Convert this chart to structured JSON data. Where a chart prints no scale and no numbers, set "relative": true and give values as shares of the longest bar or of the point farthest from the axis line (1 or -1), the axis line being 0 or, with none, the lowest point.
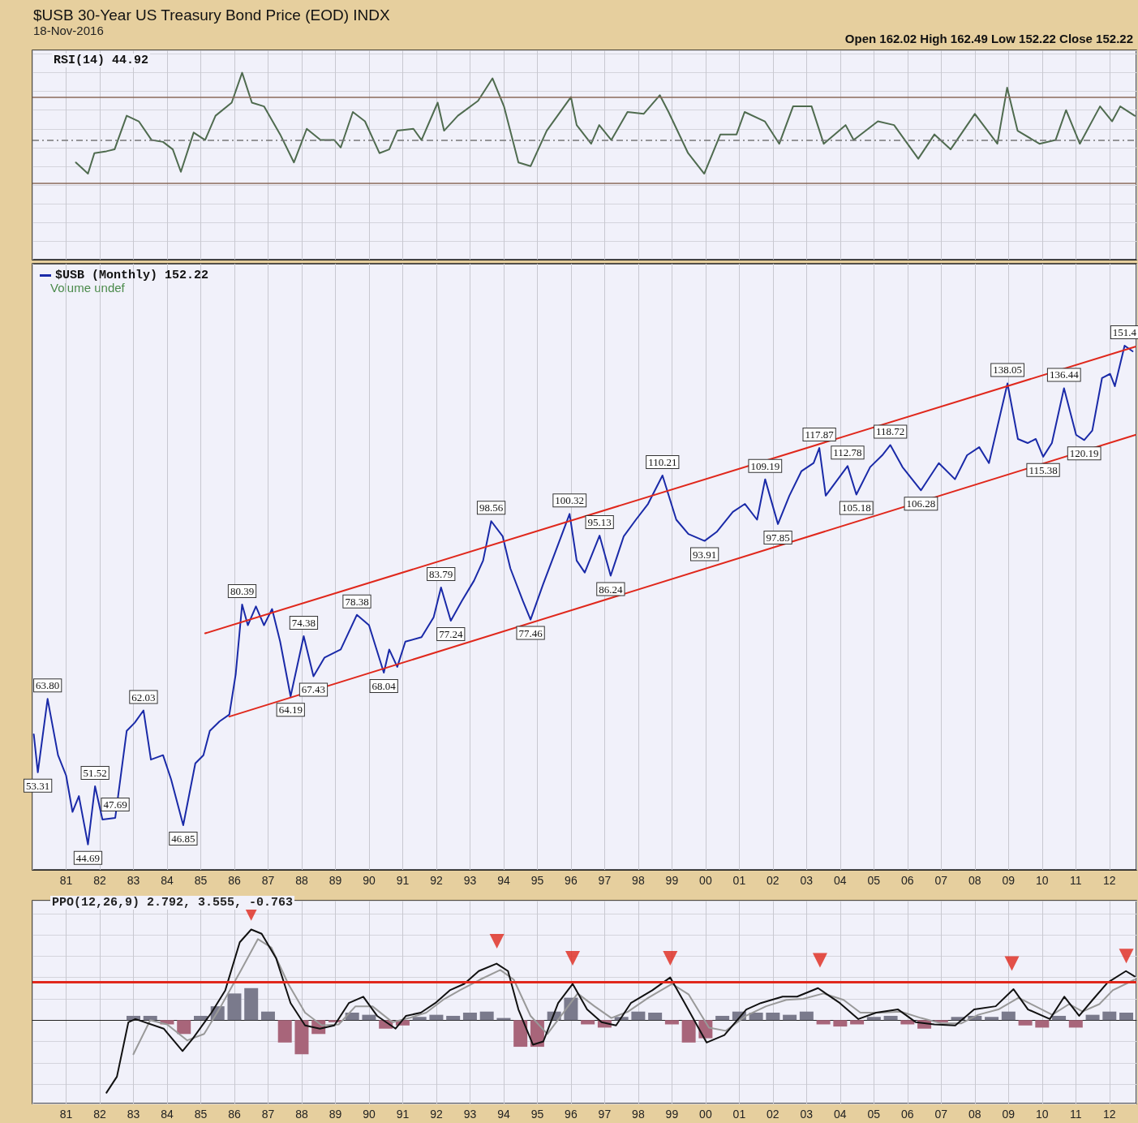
{
  "chart_data": [
    {
      "type": "line",
      "title": "$USB 30-Year US Treasury Bond Price (EOD) INDX",
      "subtitle": "18-Nov-2016",
      "annotations": [
        "Open 162.02 High 162.49 Low 152.22 Close 152.22",
        "RSI(14) 44.92"
      ],
      "relative": true,
      "xlim": [
        1980,
        2012.8
      ],
      "tick_labels": false,
      "grid": true,
      "marker": "none",
      "ref_lines": [
        {
          "axis": "y",
          "value": 0.87,
          "color": "#8a6a5a"
        },
        {
          "axis": "y",
          "value": 0.41,
          "color": "#8a6a5a"
        },
        {
          "axis": "y",
          "value": 0.64,
          "color": "#777777",
          "line_style": "dashed"
        }
      ],
      "series": [
        {
          "color": "#4f6b4f",
          "x": [
            1981.29,
            1981.65,
            1981.84,
            1982.2,
            1982.44,
            1982.8,
            1983.16,
            1983.54,
            1983.88,
            1984.17,
            1984.41,
            1984.79,
            1985.13,
            1985.44,
            1985.92,
            1986.23,
            1986.52,
            1986.88,
            1987.36,
            1987.77,
            1988.15,
            1988.56,
            1988.97,
            1989.16,
            1989.52,
            1989.88,
            1990.31,
            1990.6,
            1990.84,
            1991.32,
            1991.56,
            1992.04,
            1992.23,
            1992.64,
            1993.24,
            1993.67,
            1994.01,
            1994.44,
            1994.8,
            1995.28,
            1996.0,
            1996.17,
            1996.6,
            1996.84,
            1997.2,
            1997.68,
            1998.16,
            1998.64,
            1998.9,
            1999.48,
            1999.96,
            2000.44,
            2000.92,
            2001.16,
            2001.76,
            2002.19,
            2002.6,
            2003.15,
            2003.51,
            2004.16,
            2004.4,
            2005.12,
            2005.6,
            2006.32,
            2006.8,
            2007.28,
            2008.0,
            2008.67,
            2008.96,
            2009.27,
            2009.92,
            2010.4,
            2010.71,
            2011.12,
            2011.72,
            2012.08,
            2012.32,
            2012.75
          ],
          "values": [
            0.52,
            0.46,
            0.57,
            0.58,
            0.59,
            0.77,
            0.74,
            0.64,
            0.63,
            0.59,
            0.47,
            0.68,
            0.64,
            0.77,
            0.84,
            1.0,
            0.84,
            0.82,
            0.67,
            0.52,
            0.7,
            0.64,
            0.64,
            0.6,
            0.79,
            0.74,
            0.57,
            0.59,
            0.69,
            0.7,
            0.64,
            0.84,
            0.69,
            0.77,
            0.85,
            0.97,
            0.82,
            0.52,
            0.5,
            0.69,
            0.87,
            0.72,
            0.62,
            0.72,
            0.64,
            0.79,
            0.78,
            0.88,
            0.79,
            0.57,
            0.46,
            0.67,
            0.67,
            0.79,
            0.74,
            0.62,
            0.82,
            0.82,
            0.62,
            0.72,
            0.64,
            0.74,
            0.72,
            0.54,
            0.67,
            0.59,
            0.78,
            0.62,
            0.92,
            0.69,
            0.62,
            0.64,
            0.8,
            0.62,
            0.82,
            0.74,
            0.82,
            0.77
          ]
        }
      ]
    },
    {
      "type": "line",
      "annotations": [
        "Volume undef"
      ],
      "log": true,
      "ylim": [
        42,
        185
      ],
      "xlim": [
        1980,
        2012.8
      ],
      "xticks": [
        {
          "value": 1981,
          "label": "81"
        },
        {
          "value": 1982,
          "label": "82"
        },
        {
          "value": 1983,
          "label": "83"
        },
        {
          "value": 1984,
          "label": "84"
        },
        {
          "value": 1985,
          "label": "85"
        },
        {
          "value": 1986,
          "label": "86"
        },
        {
          "value": 1987,
          "label": "87"
        },
        {
          "value": 1988,
          "label": "88"
        },
        {
          "value": 1989,
          "label": "89"
        },
        {
          "value": 1990,
          "label": "90"
        },
        {
          "value": 1991,
          "label": "91"
        },
        {
          "value": 1992,
          "label": "92"
        },
        {
          "value": 1993,
          "label": "93"
        },
        {
          "value": 1994,
          "label": "94"
        },
        {
          "value": 1995,
          "label": "95"
        },
        {
          "value": 1996,
          "label": "96"
        },
        {
          "value": 1997,
          "label": "97"
        },
        {
          "value": 1998,
          "label": "98"
        },
        {
          "value": 1999,
          "label": "99"
        },
        {
          "value": 2000,
          "label": "00"
        },
        {
          "value": 2001,
          "label": "01"
        },
        {
          "value": 2002,
          "label": "02"
        },
        {
          "value": 2003,
          "label": "03"
        },
        {
          "value": 2004,
          "label": "04"
        },
        {
          "value": 2005,
          "label": "05"
        },
        {
          "value": 2006,
          "label": "06"
        },
        {
          "value": 2007,
          "label": "07"
        },
        {
          "value": 2008,
          "label": "08"
        },
        {
          "value": 2009,
          "label": "09"
        },
        {
          "value": 2010,
          "label": "10"
        },
        {
          "value": 2011,
          "label": "11"
        },
        {
          "value": 2012,
          "label": "12"
        }
      ],
      "tick_labels": "x",
      "grid": "x",
      "legend": "top left",
      "marker": "none",
      "series": [
        {
          "name": "$USB (Monthly) 152.22",
          "color": "#1a2aa8",
          "x": [
            1980.04,
            1980.16,
            1980.45,
            1980.76,
            1981.0,
            1981.19,
            1981.38,
            1981.65,
            1981.86,
            1982.08,
            1982.46,
            1982.8,
            1983.04,
            1983.3,
            1983.52,
            1983.88,
            1984.12,
            1984.48,
            1984.84,
            1985.08,
            1985.27,
            1985.56,
            1985.85,
            1986.04,
            1986.23,
            1986.4,
            1986.64,
            1986.88,
            1987.12,
            1987.36,
            1987.67,
            1988.06,
            1988.35,
            1988.68,
            1989.16,
            1989.64,
            1990.0,
            1990.44,
            1990.6,
            1990.84,
            1991.08,
            1991.56,
            1991.92,
            1992.14,
            1992.43,
            1992.76,
            1993.12,
            1993.39,
            1993.63,
            1993.97,
            1994.2,
            1994.57,
            1994.8,
            1995.17,
            1995.53,
            1995.96,
            1996.17,
            1996.41,
            1996.85,
            1997.18,
            1997.57,
            1997.93,
            1998.29,
            1998.72,
            1999.13,
            1999.49,
            1999.97,
            2000.33,
            2000.81,
            2001.17,
            2001.53,
            2001.77,
            2002.15,
            2002.49,
            2002.85,
            2003.21,
            2003.38,
            2003.57,
            2003.93,
            2004.22,
            2004.48,
            2004.89,
            2005.25,
            2005.49,
            2005.85,
            2006.4,
            2006.93,
            2007.41,
            2007.77,
            2008.13,
            2008.42,
            2008.97,
            2009.28,
            2009.57,
            2009.81,
            2010.03,
            2010.29,
            2010.65,
            2011.01,
            2011.25,
            2011.49,
            2011.78,
            2012.02,
            2012.16,
            2012.45,
            2012.69
          ],
          "values": [
            58.5,
            53.31,
            63.8,
            55.6,
            52.9,
            48.4,
            50.3,
            44.69,
            51.52,
            47.5,
            47.69,
            59.0,
            60.2,
            62.03,
            55.0,
            55.6,
            52.4,
            46.85,
            54.5,
            55.6,
            59.0,
            60.4,
            61.4,
            67.8,
            80.39,
            76.4,
            80.0,
            76.4,
            79.5,
            73.4,
            64.19,
            74.38,
            67.43,
            70.6,
            72.0,
            78.38,
            76.4,
            68.04,
            72.0,
            69.0,
            73.4,
            74.2,
            77.9,
            83.79,
            77.24,
            81.1,
            85.2,
            89.5,
            98.56,
            95.0,
            87.8,
            81.1,
            77.46,
            84.4,
            91.3,
            100.32,
            89.5,
            86.9,
            95.13,
            86.24,
            95.0,
            98.9,
            102.8,
            110.21,
            98.9,
            95.5,
            93.91,
            96.0,
            100.8,
            102.8,
            98.9,
            109.19,
            97.85,
            104.9,
            111.4,
            113.6,
            117.87,
            104.9,
            109.2,
            112.78,
            105.18,
            112.5,
            115.8,
            118.72,
            112.5,
            106.28,
            113.6,
            109.2,
            115.8,
            118.1,
            113.6,
            138.05,
            120.5,
            119.3,
            120.5,
            115.38,
            119.3,
            136.44,
            121.7,
            120.19,
            123.0,
            139.9,
            141.3,
            137.1,
            151.4,
            149.3
          ],
          "value_labels": [
            null,
            "53.31",
            "63.80",
            null,
            null,
            null,
            null,
            "44.69",
            "51.52",
            null,
            "47.69",
            null,
            null,
            "62.03",
            null,
            null,
            null,
            "46.85",
            null,
            null,
            null,
            null,
            null,
            null,
            "80.39",
            null,
            null,
            null,
            null,
            null,
            "64.19",
            "74.38",
            "67.43",
            null,
            null,
            "78.38",
            null,
            "68.04",
            null,
            null,
            null,
            null,
            null,
            "83.79",
            "77.24",
            null,
            null,
            null,
            "98.56",
            null,
            null,
            null,
            "77.46",
            null,
            null,
            "100.32",
            null,
            null,
            "95.13",
            "86.24",
            null,
            null,
            null,
            "110.21",
            null,
            null,
            "93.91",
            null,
            null,
            null,
            null,
            "109.19",
            "97.85",
            null,
            null,
            null,
            "117.87",
            null,
            null,
            "112.78",
            "105.18",
            null,
            null,
            "118.72",
            null,
            "106.28",
            null,
            null,
            null,
            null,
            null,
            "138.05",
            null,
            null,
            null,
            "115.38",
            null,
            "136.44",
            null,
            "120.19",
            null,
            null,
            null,
            null,
            "151.4",
            null
          ]
        },
        {
          "color": "#e0281c",
          "x": [
            1985.13,
            2012.77
          ],
          "values": [
            74.9,
            151.0
          ]
        },
        {
          "color": "#e0281c",
          "x": [
            1985.85,
            2012.77
          ],
          "values": [
            61.1,
            121.7
          ]
        }
      ]
    },
    {
      "type": "line",
      "title": "PPO(12,26,9) 2.792, 3.555, -0.763",
      "relative": true,
      "xlim": [
        1980,
        2012.8
      ],
      "xticks": [
        {
          "value": 1981,
          "label": "81"
        },
        {
          "value": 1982,
          "label": "82"
        },
        {
          "value": 1983,
          "label": "83"
        },
        {
          "value": 1984,
          "label": "84"
        },
        {
          "value": 1985,
          "label": "85"
        },
        {
          "value": 1986,
          "label": "86"
        },
        {
          "value": 1987,
          "label": "87"
        },
        {
          "value": 1988,
          "label": "88"
        },
        {
          "value": 1989,
          "label": "89"
        },
        {
          "value": 1990,
          "label": "90"
        },
        {
          "value": 1991,
          "label": "91"
        },
        {
          "value": 1992,
          "label": "92"
        },
        {
          "value": 1993,
          "label": "93"
        },
        {
          "value": 1994,
          "label": "94"
        },
        {
          "value": 1995,
          "label": "95"
        },
        {
          "value": 1996,
          "label": "96"
        },
        {
          "value": 1997,
          "label": "97"
        },
        {
          "value": 1998,
          "label": "98"
        },
        {
          "value": 1999,
          "label": "99"
        },
        {
          "value": 2000,
          "label": "00"
        },
        {
          "value": 2001,
          "label": "01"
        },
        {
          "value": 2002,
          "label": "02"
        },
        {
          "value": 2003,
          "label": "03"
        },
        {
          "value": 2004,
          "label": "04"
        },
        {
          "value": 2005,
          "label": "05"
        },
        {
          "value": 2006,
          "label": "06"
        },
        {
          "value": 2007,
          "label": "07"
        },
        {
          "value": 2008,
          "label": "08"
        },
        {
          "value": 2009,
          "label": "09"
        },
        {
          "value": 2010,
          "label": "10"
        },
        {
          "value": 2011,
          "label": "11"
        },
        {
          "value": 2012,
          "label": "12"
        }
      ],
      "tick_labels": "x",
      "grid": true,
      "marker": "none",
      "ref_lines": [
        {
          "axis": "y",
          "value": 0.36,
          "color": "#e0281c"
        }
      ],
      "series": [
        {
          "type": "bar",
          "color": "#7a7a8c",
          "x": [
            1983.0,
            1983.5,
            1985.0,
            1985.5,
            1986.0,
            1986.5,
            1987.0,
            1989.5,
            1990.0,
            1991.5,
            1992.0,
            1992.5,
            1993.0,
            1993.5,
            1994.0,
            1995.5,
            1996.0,
            1997.5,
            1998.0,
            1998.5,
            2000.5,
            2001.0,
            2001.5,
            2002.0,
            2002.5,
            2003.0,
            2005.0,
            2005.5,
            2007.5,
            2008.0,
            2008.5,
            2009.0,
            2010.5,
            2011.5,
            2012.0,
            2012.5
          ],
          "values": [
            0.04,
            0.04,
            0.04,
            0.13,
            0.25,
            0.3,
            0.08,
            0.07,
            0.05,
            0.03,
            0.05,
            0.04,
            0.07,
            0.08,
            0.02,
            0.08,
            0.21,
            0.03,
            0.08,
            0.07,
            0.04,
            0.08,
            0.07,
            0.07,
            0.05,
            0.08,
            0.03,
            0.04,
            0.03,
            0.04,
            0.03,
            0.08,
            0.04,
            0.05,
            0.08,
            0.07
          ]
        },
        {
          "type": "bar",
          "color": "#a8657a",
          "x": [
            1984.0,
            1984.5,
            1987.5,
            1988.0,
            1988.5,
            1989.0,
            1990.5,
            1991.0,
            1994.5,
            1995.0,
            1996.5,
            1997.0,
            1999.0,
            1999.5,
            2000.0,
            2003.5,
            2004.0,
            2004.5,
            2006.0,
            2006.5,
            2007.0,
            2009.5,
            2010.0,
            2011.0
          ],
          "values": [
            -0.04,
            -0.13,
            -0.21,
            -0.32,
            -0.13,
            -0.02,
            -0.08,
            -0.05,
            -0.25,
            -0.25,
            -0.04,
            -0.07,
            -0.04,
            -0.21,
            -0.17,
            -0.04,
            -0.06,
            -0.04,
            -0.04,
            -0.08,
            -0.02,
            -0.05,
            -0.07,
            -0.07
          ]
        },
        {
          "color": "#999999",
          "x": [
            1983.0,
            1983.5,
            1984.0,
            1984.6,
            1985.1,
            1985.6,
            1986.2,
            1986.7,
            1987.1,
            1987.6,
            1988.1,
            1988.6,
            1989.1,
            1989.6,
            1990.1,
            1990.7,
            1991.2,
            1991.7,
            1992.2,
            1992.7,
            1993.3,
            1993.9,
            1994.3,
            1994.8,
            1995.3,
            1995.8,
            1996.2,
            1996.7,
            1997.2,
            1997.7,
            1998.3,
            1999.0,
            1999.5,
            2000.1,
            2000.6,
            2001.2,
            2001.8,
            2002.4,
            2002.9,
            2003.5,
            2004.1,
            2004.6,
            2005.2,
            2005.8,
            2006.4,
            2007.0,
            2007.6,
            2008.1,
            2008.7,
            2009.3,
            2009.8,
            2010.3,
            2010.8,
            2011.2,
            2011.7,
            2012.1,
            2012.75
          ],
          "values": [
            -0.32,
            0.0,
            -0.04,
            -0.19,
            -0.13,
            0.13,
            0.47,
            0.76,
            0.68,
            0.34,
            0.07,
            -0.05,
            -0.04,
            0.13,
            0.13,
            -0.02,
            0.02,
            0.07,
            0.19,
            0.28,
            0.38,
            0.47,
            0.38,
            0.04,
            -0.13,
            0.08,
            0.25,
            0.13,
            0.02,
            0.08,
            0.21,
            0.34,
            0.24,
            -0.07,
            -0.1,
            0.04,
            0.13,
            0.19,
            0.2,
            0.25,
            0.19,
            0.07,
            0.07,
            0.08,
            0.02,
            -0.03,
            -0.03,
            0.05,
            0.1,
            0.21,
            0.13,
            0.05,
            0.15,
            0.08,
            0.15,
            0.28,
            0.38
          ]
        },
        {
          "color": "#111111",
          "x": [
            1982.2,
            1982.51,
            1982.85,
            1983.06,
            1983.9,
            1984.46,
            1984.77,
            1985.32,
            1985.73,
            1986.16,
            1986.5,
            1986.81,
            1987.24,
            1987.67,
            1988.1,
            1988.54,
            1988.97,
            1989.4,
            1989.83,
            1990.24,
            1990.79,
            1991.1,
            1991.54,
            1991.97,
            1992.4,
            1992.83,
            1993.26,
            1993.79,
            1994.13,
            1994.44,
            1994.87,
            1995.18,
            1995.62,
            1996.05,
            1996.48,
            1996.91,
            1997.34,
            1997.78,
            1998.42,
            1998.95,
            1999.38,
            2000.03,
            2000.56,
            2001.21,
            2001.64,
            2002.29,
            2002.72,
            2003.34,
            2003.99,
            2004.54,
            2005.07,
            2005.72,
            2006.25,
            2006.8,
            2007.42,
            2007.98,
            2008.62,
            2009.15,
            2009.58,
            2010.23,
            2010.66,
            2011.1,
            2011.5,
            2011.94,
            2012.49,
            2012.75
          ],
          "values": [
            -0.68,
            -0.53,
            -0.02,
            0.01,
            -0.08,
            -0.29,
            -0.17,
            0.07,
            0.28,
            0.73,
            0.85,
            0.81,
            0.58,
            0.16,
            -0.05,
            -0.08,
            -0.05,
            0.16,
            0.22,
            0.04,
            -0.08,
            0.04,
            0.07,
            0.16,
            0.28,
            0.34,
            0.46,
            0.53,
            0.46,
            0.1,
            -0.23,
            -0.2,
            0.16,
            0.34,
            0.1,
            -0.02,
            -0.05,
            0.16,
            0.28,
            0.4,
            0.16,
            -0.21,
            -0.14,
            0.1,
            0.16,
            0.22,
            0.22,
            0.3,
            0.16,
            0.01,
            0.07,
            0.1,
            -0.02,
            -0.04,
            -0.05,
            0.1,
            0.13,
            0.29,
            0.1,
            0.01,
            0.22,
            0.04,
            0.19,
            0.35,
            0.46,
            0.41
          ]
        },
        {
          "type": "scatter",
          "marker": "triangle",
          "color": "#e0281c",
          "x": [
            1986.5,
            1993.8,
            1996.05,
            1998.95,
            2003.4,
            2009.1,
            2012.5
          ],
          "values": [
            1.0,
            0.74,
            0.58,
            0.58,
            0.56,
            0.53,
            0.6
          ]
        }
      ]
    }
  ]
}
